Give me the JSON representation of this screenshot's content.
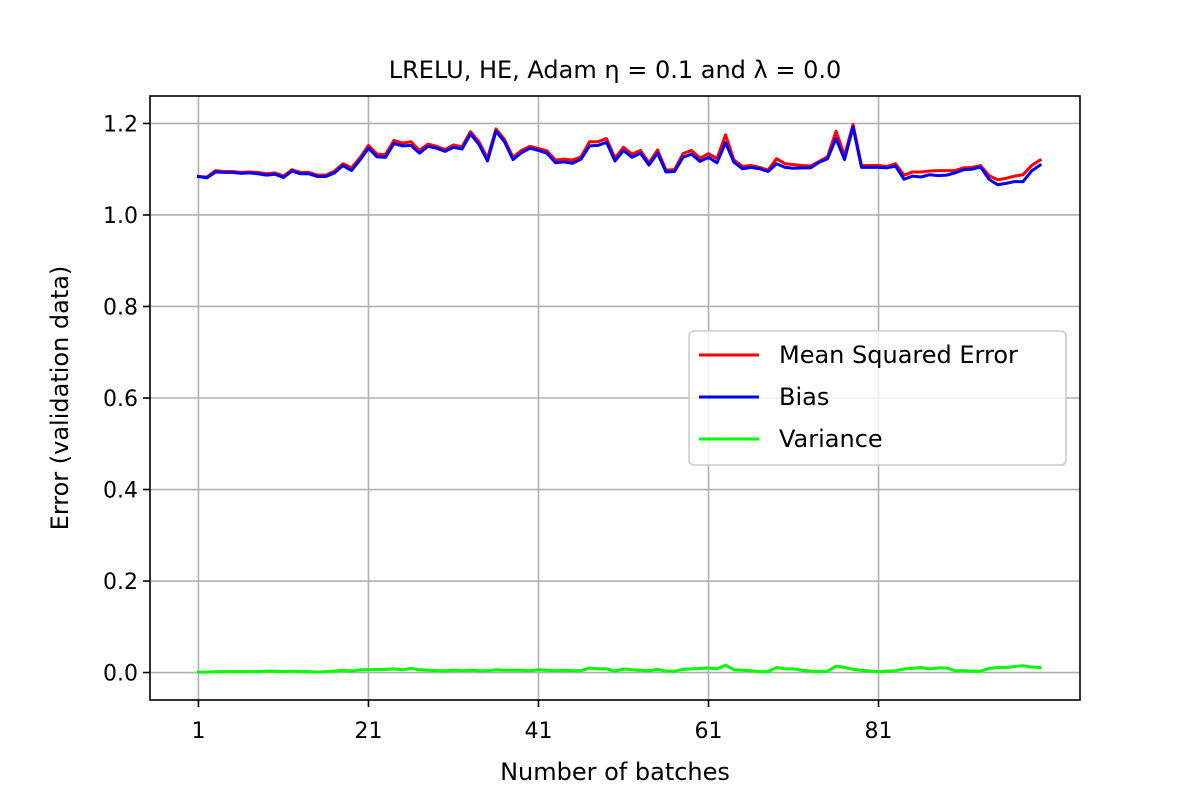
{
  "chart_data": {
    "type": "line",
    "title": "LRELU, HE, Adam η = 0.1 and λ = 0.0",
    "xlabel": "Number of batches",
    "ylabel": "Error (validation data)",
    "xlim": [
      -4.7,
      104.7
    ],
    "ylim": [
      -0.06,
      1.26
    ],
    "xticks": [
      1,
      21,
      41,
      61,
      81
    ],
    "yticks": [
      0.0,
      0.2,
      0.4,
      0.6,
      0.8,
      1.0,
      1.2
    ],
    "ytick_labels": [
      "0.0",
      "0.2",
      "0.4",
      "0.6",
      "0.8",
      "1.0",
      "1.2"
    ],
    "grid": true,
    "legend_position": "center-right",
    "x": [
      1,
      2,
      3,
      4,
      5,
      6,
      7,
      8,
      9,
      10,
      11,
      12,
      13,
      14,
      15,
      16,
      17,
      18,
      19,
      20,
      21,
      22,
      23,
      24,
      25,
      26,
      27,
      28,
      29,
      30,
      31,
      32,
      33,
      34,
      35,
      36,
      37,
      38,
      39,
      40,
      41,
      42,
      43,
      44,
      45,
      46,
      47,
      48,
      49,
      50,
      51,
      52,
      53,
      54,
      55,
      56,
      57,
      58,
      59,
      60,
      61,
      62,
      63,
      64,
      65,
      66,
      67,
      68,
      69,
      70,
      71,
      72,
      73,
      74,
      75,
      76,
      77,
      78,
      79,
      80,
      81,
      82,
      83,
      84,
      85,
      86,
      87,
      88,
      89,
      90,
      91,
      92,
      93,
      94,
      95,
      96,
      97,
      98,
      99,
      100
    ],
    "series": [
      {
        "name": "Mean Squared Error",
        "color": "#ff0000",
        "values": [
          1.084,
          1.083,
          1.097,
          1.095,
          1.095,
          1.093,
          1.094,
          1.093,
          1.09,
          1.092,
          1.085,
          1.099,
          1.093,
          1.093,
          1.087,
          1.087,
          1.096,
          1.112,
          1.103,
          1.125,
          1.152,
          1.133,
          1.132,
          1.163,
          1.157,
          1.16,
          1.141,
          1.155,
          1.15,
          1.143,
          1.153,
          1.149,
          1.182,
          1.16,
          1.124,
          1.188,
          1.165,
          1.126,
          1.141,
          1.15,
          1.145,
          1.14,
          1.12,
          1.122,
          1.12,
          1.127,
          1.16,
          1.16,
          1.167,
          1.124,
          1.148,
          1.133,
          1.141,
          1.114,
          1.142,
          1.098,
          1.099,
          1.134,
          1.141,
          1.124,
          1.134,
          1.123,
          1.175,
          1.12,
          1.106,
          1.108,
          1.104,
          1.098,
          1.123,
          1.112,
          1.11,
          1.108,
          1.107,
          1.117,
          1.127,
          1.183,
          1.13,
          1.198,
          1.108,
          1.108,
          1.108,
          1.106,
          1.112,
          1.087,
          1.094,
          1.094,
          1.096,
          1.097,
          1.097,
          1.097,
          1.103,
          1.104,
          1.108,
          1.086,
          1.077,
          1.08,
          1.085,
          1.088,
          1.108,
          1.12
        ]
      },
      {
        "name": "Bias",
        "color": "#0000ff",
        "values": [
          1.084,
          1.081,
          1.094,
          1.093,
          1.093,
          1.091,
          1.092,
          1.09,
          1.087,
          1.089,
          1.082,
          1.096,
          1.09,
          1.09,
          1.084,
          1.084,
          1.092,
          1.108,
          1.097,
          1.12,
          1.146,
          1.127,
          1.126,
          1.156,
          1.151,
          1.152,
          1.135,
          1.15,
          1.146,
          1.139,
          1.148,
          1.144,
          1.177,
          1.154,
          1.118,
          1.183,
          1.16,
          1.121,
          1.136,
          1.146,
          1.141,
          1.135,
          1.114,
          1.116,
          1.113,
          1.122,
          1.151,
          1.152,
          1.159,
          1.118,
          1.141,
          1.126,
          1.135,
          1.109,
          1.135,
          1.094,
          1.095,
          1.126,
          1.133,
          1.117,
          1.126,
          1.114,
          1.158,
          1.115,
          1.101,
          1.104,
          1.101,
          1.095,
          1.112,
          1.104,
          1.102,
          1.103,
          1.103,
          1.115,
          1.123,
          1.167,
          1.121,
          1.192,
          1.104,
          1.104,
          1.104,
          1.103,
          1.107,
          1.078,
          1.085,
          1.083,
          1.088,
          1.086,
          1.087,
          1.092,
          1.099,
          1.1,
          1.105,
          1.078,
          1.066,
          1.069,
          1.073,
          1.073,
          1.096,
          1.109
        ]
      },
      {
        "name": "Variance",
        "color": "#00ff00",
        "values": [
          0.001,
          0.001,
          0.002,
          0.002,
          0.002,
          0.002,
          0.002,
          0.002,
          0.003,
          0.003,
          0.002,
          0.003,
          0.002,
          0.002,
          0.001,
          0.002,
          0.003,
          0.005,
          0.003,
          0.006,
          0.006,
          0.007,
          0.007,
          0.008,
          0.006,
          0.009,
          0.006,
          0.005,
          0.004,
          0.004,
          0.005,
          0.004,
          0.005,
          0.004,
          0.004,
          0.006,
          0.005,
          0.005,
          0.005,
          0.004,
          0.006,
          0.005,
          0.004,
          0.005,
          0.004,
          0.004,
          0.01,
          0.008,
          0.008,
          0.003,
          0.008,
          0.006,
          0.005,
          0.004,
          0.007,
          0.003,
          0.003,
          0.007,
          0.008,
          0.009,
          0.01,
          0.008,
          0.016,
          0.006,
          0.005,
          0.004,
          0.002,
          0.002,
          0.011,
          0.008,
          0.008,
          0.005,
          0.003,
          0.002,
          0.003,
          0.014,
          0.011,
          0.007,
          0.005,
          0.003,
          0.002,
          0.003,
          0.004,
          0.008,
          0.009,
          0.011,
          0.008,
          0.01,
          0.01,
          0.004,
          0.004,
          0.003,
          0.003,
          0.009,
          0.011,
          0.011,
          0.013,
          0.015,
          0.012,
          0.011
        ]
      }
    ]
  }
}
